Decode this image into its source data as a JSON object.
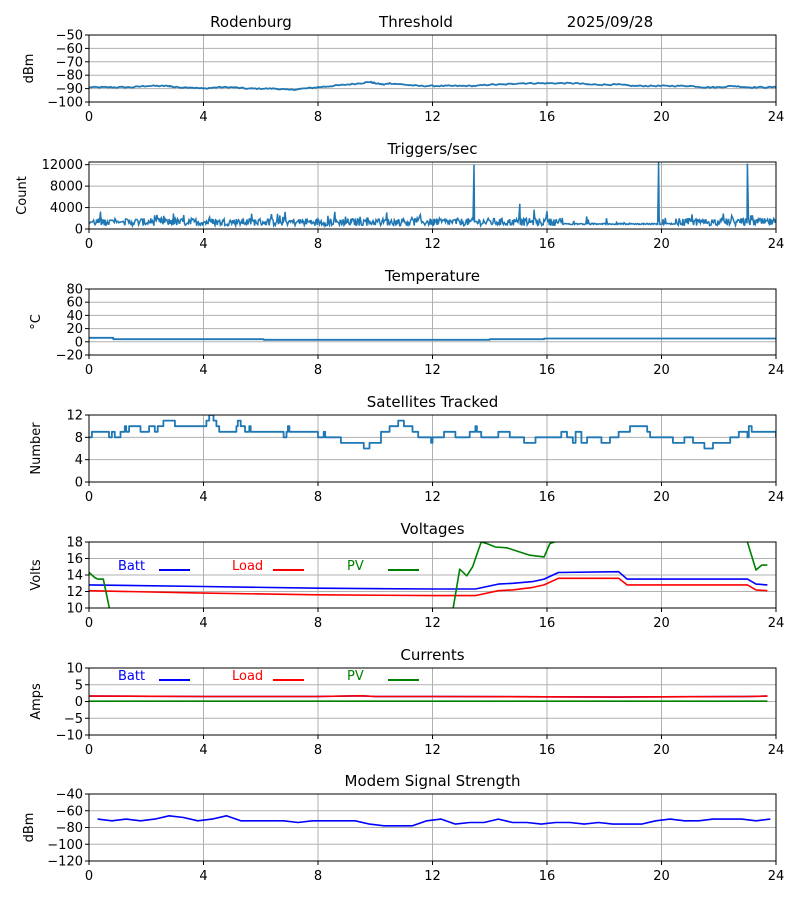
{
  "header": {
    "station": "Rodenburg",
    "mode": "Threshold",
    "date": "2025/09/28"
  },
  "colors": {
    "default_series": "#1f77b4",
    "batt": "#0000ff",
    "load": "#ff0000",
    "pv": "#008000",
    "grid": "#b0b0b0",
    "axis": "#000000"
  },
  "chart_data": [
    {
      "id": "rssi",
      "type": "line",
      "title": "",
      "xlabel": "",
      "ylabel": "dBm",
      "xlim": [
        0,
        24
      ],
      "ylim": [
        -100,
        -50
      ],
      "xticks": [
        "0",
        "4",
        "8",
        "12",
        "16",
        "20",
        "24"
      ],
      "yticks": [
        -50,
        -60,
        -70,
        -80,
        -90,
        -100
      ],
      "ytick_labels": [
        "−50",
        "−60",
        "−70",
        "−80",
        "−90",
        "−100"
      ],
      "grid": true,
      "series": [
        {
          "name": "signal",
          "color": "#1f77b4",
          "x": [
            0,
            0.5,
            1,
            1.5,
            2,
            2.5,
            2.8,
            3,
            3.5,
            4,
            4.5,
            5,
            5.5,
            6,
            6.5,
            7,
            7.5,
            8,
            8.5,
            9,
            9.5,
            9.8,
            10,
            10.3,
            10.5,
            11,
            11.5,
            12,
            12.5,
            13,
            13.5,
            14,
            14.5,
            15,
            15.5,
            16,
            16.5,
            17,
            17.5,
            18,
            18.5,
            19,
            19.5,
            20,
            20.5,
            21,
            21.5,
            22,
            22.5,
            23,
            23.5,
            24
          ],
          "y": [
            -89,
            -89,
            -89,
            -89,
            -88,
            -88,
            -88,
            -89,
            -89,
            -90,
            -89,
            -89,
            -90,
            -90,
            -90,
            -91,
            -90,
            -89,
            -88,
            -87,
            -86,
            -85,
            -86,
            -87,
            -86,
            -87,
            -88,
            -88,
            -88,
            -88,
            -88,
            -87,
            -87,
            -86,
            -86,
            -86,
            -86,
            -86,
            -87,
            -87,
            -87,
            -88,
            -88,
            -88,
            -88,
            -88,
            -89,
            -89,
            -88,
            -89,
            -89,
            -89
          ]
        }
      ]
    },
    {
      "id": "triggers",
      "type": "line",
      "title": "Triggers/sec",
      "xlabel": "",
      "ylabel": "Count",
      "xlim": [
        0,
        24
      ],
      "ylim": [
        0,
        12500
      ],
      "xticks": [
        "0",
        "4",
        "8",
        "12",
        "16",
        "20",
        "24"
      ],
      "yticks": [
        0,
        4000,
        8000,
        12000
      ],
      "ytick_labels": [
        "0",
        "4000",
        "8000",
        "12000"
      ],
      "grid": true,
      "baseline": 1300,
      "noise": 700,
      "spikes": [
        {
          "x": 13.45,
          "y": 12000
        },
        {
          "x": 15.05,
          "y": 4700
        },
        {
          "x": 15.55,
          "y": 3600
        },
        {
          "x": 16.0,
          "y": 3300
        },
        {
          "x": 19.9,
          "y": 12500
        },
        {
          "x": 23.0,
          "y": 12200
        },
        {
          "x": 6.85,
          "y": 3200
        },
        {
          "x": 10.4,
          "y": 3100
        },
        {
          "x": 2.95,
          "y": 2900
        }
      ],
      "series": [
        {
          "name": "triggers",
          "color": "#1f77b4"
        }
      ]
    },
    {
      "id": "temperature",
      "type": "line",
      "title": "Temperature",
      "xlabel": "",
      "ylabel": "°C",
      "xlim": [
        0,
        24
      ],
      "ylim": [
        -20,
        80
      ],
      "xticks": [
        "0",
        "4",
        "8",
        "12",
        "16",
        "20",
        "24"
      ],
      "yticks": [
        80,
        60,
        40,
        20,
        0,
        -20
      ],
      "ytick_labels": [
        "80",
        "60",
        "40",
        "20",
        "0",
        "−20"
      ],
      "grid": true,
      "series": [
        {
          "name": "temp",
          "color": "#1f77b4",
          "x": [
            0,
            0.85,
            0.85,
            6.1,
            6.1,
            14,
            14,
            15.9,
            15.9,
            24
          ],
          "y": [
            6,
            6,
            4,
            4,
            3,
            3,
            4,
            4,
            5,
            5
          ]
        }
      ]
    },
    {
      "id": "satellites",
      "type": "line",
      "title": "Satellites Tracked",
      "xlabel": "",
      "ylabel": "Number",
      "xlim": [
        0,
        24
      ],
      "ylim": [
        0,
        12
      ],
      "xticks": [
        "0",
        "4",
        "8",
        "12",
        "16",
        "20",
        "24"
      ],
      "yticks": [
        12,
        8,
        4,
        0
      ],
      "ytick_labels": [
        "12",
        "8",
        "4",
        "0"
      ],
      "grid": true,
      "series": [
        {
          "name": "sats",
          "color": "#1f77b4",
          "x": [
            0,
            0.1,
            0.7,
            0.8,
            0.9,
            1.1,
            1.2,
            1.25,
            1.3,
            1.4,
            1.8,
            2.1,
            2.3,
            2.4,
            2.6,
            3.0,
            4.1,
            4.2,
            4.35,
            4.45,
            4.55,
            5.15,
            5.2,
            5.3,
            5.45,
            5.6,
            5.65,
            6.8,
            6.9,
            6.95,
            7.0,
            8.0,
            8.2,
            8.25,
            8.8,
            9.6,
            9.8,
            10.2,
            10.5,
            10.8,
            11.0,
            11.3,
            11.5,
            11.7,
            11.95,
            12.0,
            12.1,
            12.4,
            12.8,
            13.3,
            13.5,
            13.55,
            13.7,
            14.3,
            14.7,
            15.2,
            15.6,
            16.5,
            16.7,
            16.9,
            17.0,
            17.2,
            17.4,
            17.9,
            18.2,
            18.5,
            18.9,
            19.5,
            19.6,
            20.1,
            20.4,
            20.8,
            21.1,
            21.5,
            21.8,
            22.4,
            22.7,
            23.0,
            23.05,
            23.15,
            24
          ],
          "y": [
            8,
            9,
            8,
            9,
            8,
            9,
            9,
            10,
            9,
            10,
            9,
            10,
            9,
            10,
            11,
            10,
            11,
            12,
            11,
            10,
            9,
            10,
            11,
            10,
            9,
            10,
            9,
            8,
            9,
            10,
            9,
            8,
            9,
            8,
            7,
            6,
            7,
            9,
            10,
            11,
            10,
            9,
            8,
            8,
            7,
            8,
            8,
            9,
            8,
            9,
            10,
            9,
            8,
            9,
            8,
            7,
            8,
            9,
            8,
            7,
            9,
            7,
            8,
            7,
            8,
            9,
            10,
            9,
            8,
            8,
            7,
            8,
            7,
            6,
            7,
            8,
            9,
            8,
            10,
            9,
            8
          ]
        }
      ]
    },
    {
      "id": "voltages",
      "type": "line",
      "title": "Voltages",
      "xlabel": "",
      "ylabel": "Volts",
      "xlim": [
        0,
        24
      ],
      "ylim": [
        10,
        18
      ],
      "xticks": [
        "0",
        "4",
        "8",
        "12",
        "16",
        "20",
        "24"
      ],
      "yticks": [
        18,
        16,
        14,
        12,
        10
      ],
      "ytick_labels": [
        "18",
        "16",
        "14",
        "12",
        "10"
      ],
      "grid": true,
      "legend": [
        "Batt",
        "Load",
        "PV"
      ],
      "series": [
        {
          "name": "Batt",
          "color": "#0000ff",
          "x": [
            0,
            4,
            8,
            12,
            13.5,
            14.3,
            14.8,
            15.5,
            15.9,
            16.4,
            18.5,
            18.8,
            23.0,
            23.3,
            23.7
          ],
          "y": [
            12.8,
            12.6,
            12.4,
            12.3,
            12.3,
            12.9,
            13.0,
            13.2,
            13.5,
            14.3,
            14.4,
            13.5,
            13.5,
            12.9,
            12.8
          ]
        },
        {
          "name": "Load",
          "color": "#ff0000",
          "x": [
            0,
            4,
            8,
            12,
            13.5,
            14.3,
            14.8,
            15.5,
            15.9,
            16.4,
            18.5,
            18.8,
            23.0,
            23.3,
            23.7
          ],
          "y": [
            12.1,
            11.8,
            11.6,
            11.5,
            11.5,
            12.1,
            12.2,
            12.5,
            12.8,
            13.6,
            13.6,
            12.8,
            12.8,
            12.2,
            12.1
          ]
        },
        {
          "name": "PV",
          "color": "#008000",
          "x": [
            0,
            0.2,
            0.3,
            0.5,
            0.7,
            0.72,
            12.7,
            12.95,
            13.2,
            13.4,
            13.7,
            13.9,
            14.2,
            14.6,
            15.4,
            15.9,
            16.1,
            16.5,
            22.8,
            23.0,
            23.3,
            23.5,
            23.7
          ],
          "y": [
            14.3,
            13.7,
            13.5,
            13.5,
            10.2,
            9.5,
            9.5,
            14.7,
            13.9,
            15.0,
            18.0,
            17.8,
            17.4,
            17.3,
            16.4,
            16.2,
            17.8,
            18.3,
            18.5,
            18.0,
            14.6,
            15.2,
            15.2
          ]
        }
      ]
    },
    {
      "id": "currents",
      "type": "line",
      "title": "Currents",
      "xlabel": "",
      "ylabel": "Amps",
      "xlim": [
        0,
        24
      ],
      "ylim": [
        -10,
        10
      ],
      "xticks": [
        "0",
        "4",
        "8",
        "12",
        "16",
        "20",
        "24"
      ],
      "yticks": [
        10,
        5,
        0,
        -5,
        -10
      ],
      "ytick_labels": [
        "10",
        "5",
        "0",
        "−5",
        "−10"
      ],
      "grid": true,
      "legend": [
        "Batt",
        "Load",
        "PV"
      ],
      "series": [
        {
          "name": "Batt",
          "color": "#0000ff",
          "x": [
            0,
            4,
            8,
            9.5,
            10,
            12,
            16,
            18.5,
            20,
            23,
            23.7
          ],
          "y": [
            1.6,
            1.5,
            1.5,
            1.7,
            1.5,
            1.5,
            1.4,
            1.3,
            1.4,
            1.5,
            1.6
          ]
        },
        {
          "name": "Load",
          "color": "#ff0000",
          "x": [
            0,
            4,
            8,
            9.5,
            10,
            12,
            16,
            18.5,
            20,
            23,
            23.7
          ],
          "y": [
            1.6,
            1.5,
            1.5,
            1.7,
            1.5,
            1.5,
            1.4,
            1.3,
            1.4,
            1.5,
            1.6
          ]
        },
        {
          "name": "PV",
          "color": "#008000",
          "x": [
            0,
            23.7
          ],
          "y": [
            0.1,
            0.1
          ]
        }
      ]
    },
    {
      "id": "modem",
      "type": "line",
      "title": "Modem Signal Strength",
      "xlabel": "",
      "ylabel": "dBm",
      "xlim": [
        0,
        24
      ],
      "ylim": [
        -120,
        -40
      ],
      "xticks": [
        "0",
        "4",
        "8",
        "12",
        "16",
        "20",
        "24"
      ],
      "yticks": [
        -40,
        -60,
        -80,
        -100,
        -120
      ],
      "ytick_labels": [
        "−40",
        "−60",
        "−80",
        "−100",
        "−120"
      ],
      "grid": true,
      "series": [
        {
          "name": "modem",
          "color": "#0000ff",
          "x": [
            0.3,
            0.8,
            1.3,
            1.8,
            2.3,
            2.8,
            3.3,
            3.8,
            4.3,
            4.8,
            5.3,
            5.8,
            6.3,
            6.8,
            7.3,
            7.8,
            8.3,
            8.8,
            9.3,
            9.8,
            10.3,
            10.8,
            11.3,
            11.8,
            12.3,
            12.8,
            13.3,
            13.8,
            14.3,
            14.8,
            15.3,
            15.8,
            16.3,
            16.8,
            17.3,
            17.8,
            18.3,
            18.8,
            19.3,
            19.8,
            20.3,
            20.8,
            21.3,
            21.8,
            22.3,
            22.8,
            23.3,
            23.8
          ],
          "y": [
            -70,
            -72,
            -70,
            -72,
            -70,
            -66,
            -68,
            -72,
            -70,
            -66,
            -72,
            -72,
            -72,
            -72,
            -74,
            -72,
            -72,
            -72,
            -72,
            -76,
            -78,
            -78,
            -78,
            -72,
            -70,
            -76,
            -74,
            -74,
            -70,
            -74,
            -74,
            -76,
            -74,
            -74,
            -76,
            -74,
            -76,
            -76,
            -76,
            -72,
            -70,
            -72,
            -72,
            -70,
            -70,
            -70,
            -72,
            -70
          ]
        }
      ]
    }
  ]
}
